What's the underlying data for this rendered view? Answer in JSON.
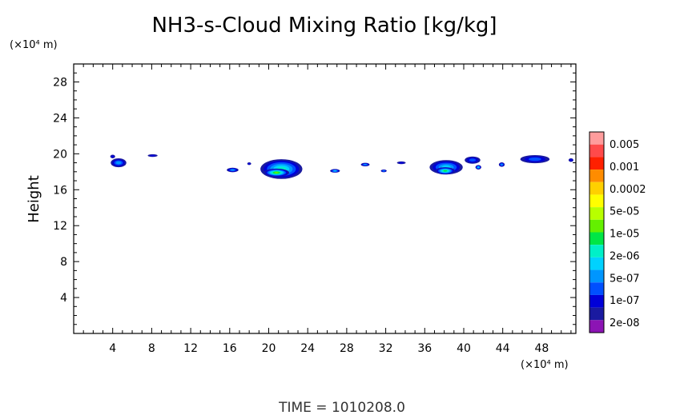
{
  "chart_data": {
    "type": "heatmap",
    "title": "NH3-s-Cloud Mixing Ratio [kg/kg]",
    "ylabel": "Height",
    "y_unit": "(×10⁴ m)",
    "x_unit": "(×10⁴ m)",
    "xlim": [
      0,
      51.5
    ],
    "ylim": [
      0,
      30
    ],
    "x_ticks": [
      "4",
      "8",
      "12",
      "16",
      "20",
      "24",
      "28",
      "32",
      "36",
      "40",
      "44",
      "48"
    ],
    "y_ticks": [
      "4",
      "8",
      "12",
      "16",
      "20",
      "24",
      "28"
    ],
    "colorbar": {
      "labels": [
        "0.005",
        "0.001",
        "0.0002",
        "5e-05",
        "1e-05",
        "2e-06",
        "5e-07",
        "1e-07",
        "2e-08"
      ],
      "colors": [
        "#ff9c9c",
        "#ff4a4a",
        "#ff2000",
        "#ff8c00",
        "#ffd000",
        "#ffff00",
        "#b8ff00",
        "#64f000",
        "#00e646",
        "#00f0c8",
        "#00d2ff",
        "#0096ff",
        "#0050ff",
        "#0000d8",
        "#1a1aa0",
        "#8c14b4"
      ]
    },
    "cloud_patches": [
      {
        "x": 4.6,
        "y": 19.0,
        "w": 1.6,
        "h": 1.0,
        "level": 3
      },
      {
        "x": 4.0,
        "y": 19.7,
        "w": 0.5,
        "h": 0.4,
        "level": 1
      },
      {
        "x": 8.1,
        "y": 19.8,
        "w": 1.0,
        "h": 0.3,
        "level": 1
      },
      {
        "x": 16.3,
        "y": 18.2,
        "w": 1.2,
        "h": 0.5,
        "level": 3
      },
      {
        "x": 18.0,
        "y": 18.9,
        "w": 0.4,
        "h": 0.3,
        "level": 1
      },
      {
        "x": 21.3,
        "y": 18.3,
        "w": 4.3,
        "h": 2.2,
        "level": 5
      },
      {
        "x": 20.8,
        "y": 17.9,
        "w": 2.6,
        "h": 0.9,
        "level": 7
      },
      {
        "x": 26.8,
        "y": 18.1,
        "w": 1.0,
        "h": 0.4,
        "level": 4
      },
      {
        "x": 29.9,
        "y": 18.8,
        "w": 0.9,
        "h": 0.4,
        "level": 3
      },
      {
        "x": 31.8,
        "y": 18.1,
        "w": 0.6,
        "h": 0.3,
        "level": 3
      },
      {
        "x": 33.6,
        "y": 19.0,
        "w": 0.9,
        "h": 0.3,
        "level": 1
      },
      {
        "x": 38.2,
        "y": 18.5,
        "w": 3.4,
        "h": 1.6,
        "level": 4
      },
      {
        "x": 38.1,
        "y": 18.1,
        "w": 2.0,
        "h": 0.8,
        "level": 6
      },
      {
        "x": 40.9,
        "y": 19.3,
        "w": 1.6,
        "h": 0.8,
        "level": 2
      },
      {
        "x": 41.5,
        "y": 18.5,
        "w": 0.6,
        "h": 0.5,
        "level": 4
      },
      {
        "x": 43.9,
        "y": 18.8,
        "w": 0.6,
        "h": 0.5,
        "level": 3
      },
      {
        "x": 47.3,
        "y": 19.4,
        "w": 3.0,
        "h": 0.9,
        "level": 2
      },
      {
        "x": 51.0,
        "y": 19.3,
        "w": 0.5,
        "h": 0.4,
        "level": 1
      }
    ]
  },
  "footer": {
    "time_label": "TIME =  1010208.0"
  }
}
